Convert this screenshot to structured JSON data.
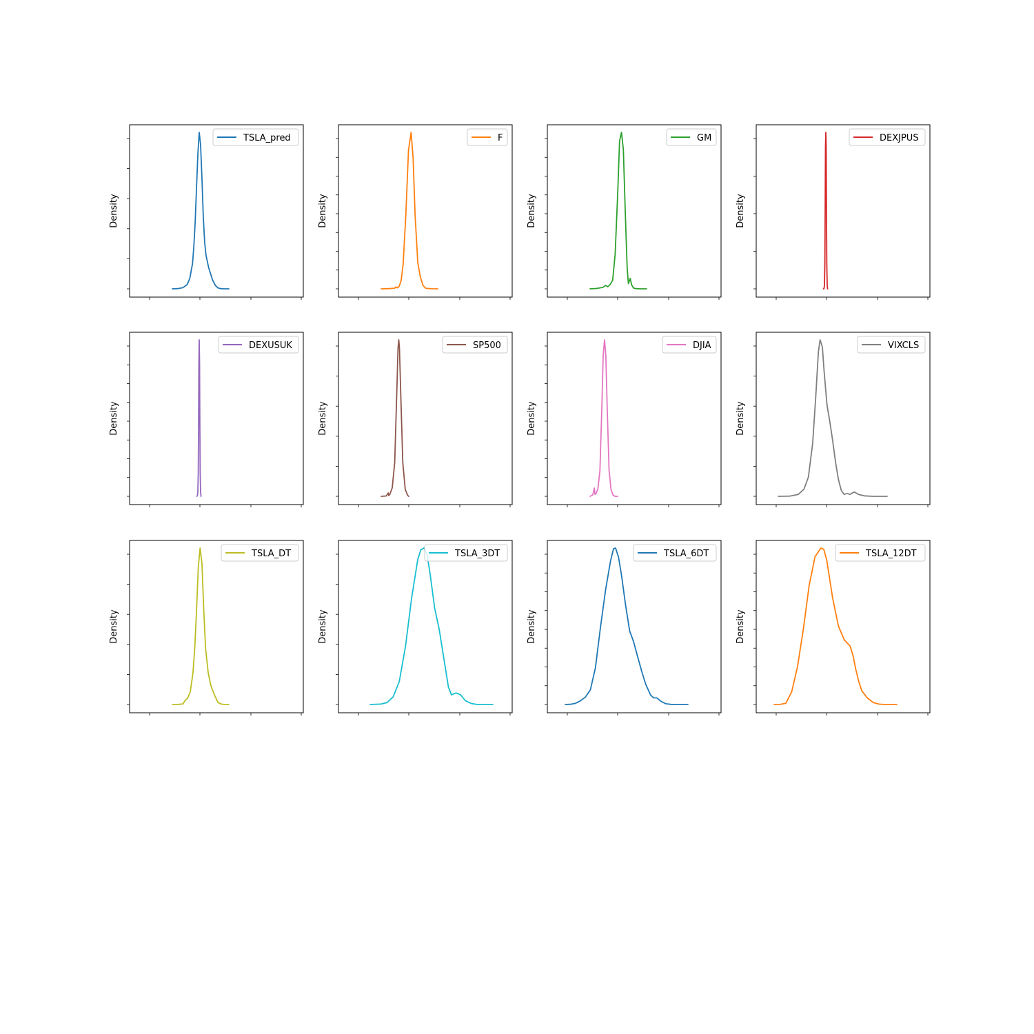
{
  "chart_data": [
    {
      "type": "line",
      "title": "",
      "xlabel": "",
      "ylabel": "Density",
      "legend": "upper right",
      "grid": false,
      "color": "#1f77b4",
      "series": [
        {
          "name": "TSLA_pred",
          "x": [
            -20,
            -16,
            -12,
            -9,
            -7,
            -5,
            -4,
            -3,
            -2,
            -1,
            0,
            1,
            2,
            3,
            4,
            5,
            7,
            9,
            10,
            12,
            14,
            16,
            18,
            22
          ],
          "y": [
            0.0,
            0.0005,
            0.003,
            0.01,
            0.025,
            0.06,
            0.1,
            0.16,
            0.24,
            0.32,
            0.37,
            0.34,
            0.26,
            0.17,
            0.11,
            0.08,
            0.05,
            0.03,
            0.02,
            0.008,
            0.002,
            0.0005,
            0.0,
            0.0
          ]
        }
      ]
    },
    {
      "type": "line",
      "title": "",
      "xlabel": "",
      "ylabel": "Density",
      "legend": "upper right",
      "grid": false,
      "color": "#ff7f0e",
      "series": [
        {
          "name": "F",
          "x": [
            -4.5,
            -3.5,
            -2.5,
            -2.3,
            -2.1,
            -1.8,
            -1.5,
            -1.2,
            -0.8,
            -0.4,
            0.0,
            0.3,
            0.6,
            1.0,
            1.4,
            1.8,
            2.2,
            3.0,
            4.0
          ],
          "y": [
            0.0,
            0.001,
            0.004,
            0.012,
            0.006,
            0.015,
            0.05,
            0.15,
            0.45,
            0.85,
            0.96,
            0.8,
            0.45,
            0.16,
            0.07,
            0.02,
            0.004,
            0.0005,
            0.0
          ]
        }
      ]
    },
    {
      "type": "line",
      "title": "",
      "xlabel": "",
      "ylabel": "Density",
      "legend": "upper right",
      "grid": false,
      "color": "#2ca02c",
      "series": [
        {
          "name": "GM",
          "x": [
            -5.0,
            -4.0,
            -3.0,
            -2.5,
            -2.2,
            -1.8,
            -1.4,
            -1.0,
            -0.6,
            -0.3,
            0.0,
            0.3,
            0.6,
            0.9,
            1.1,
            1.4,
            1.6,
            1.9,
            2.3,
            3.0,
            4.0
          ],
          "y": [
            0.0,
            0.002,
            0.008,
            0.02,
            0.012,
            0.025,
            0.05,
            0.2,
            0.55,
            0.85,
            0.9,
            0.8,
            0.45,
            0.12,
            0.03,
            0.06,
            0.025,
            0.005,
            0.001,
            0.0,
            0.0
          ]
        }
      ]
    },
    {
      "type": "line",
      "title": "",
      "xlabel": "",
      "ylabel": "Density",
      "legend": "upper right",
      "grid": false,
      "color": "#d62728",
      "series": [
        {
          "name": "DEXJPUS",
          "x": [
            -0.06,
            -0.045,
            -0.035,
            -0.025,
            -0.015,
            -0.008,
            0.0,
            0.008,
            0.015,
            0.025,
            0.035,
            0.045
          ],
          "y": [
            0.0,
            1.0,
            8.0,
            60.0,
            200.0,
            340.0,
            375.0,
            340.0,
            200.0,
            60.0,
            8.0,
            0.0
          ]
        }
      ]
    },
    {
      "type": "line",
      "title": "",
      "xlabel": "",
      "ylabel": "Density",
      "legend": "upper right",
      "grid": false,
      "color": "#9467bd",
      "series": [
        {
          "name": "DEXUSUK",
          "x": [
            -0.06,
            -0.045,
            -0.035,
            -0.025,
            -0.015,
            -0.008,
            0.0,
            0.008,
            0.015,
            0.025,
            0.035,
            0.045
          ],
          "y": [
            0.0,
            1.0,
            6.0,
            35.0,
            110.0,
            195.0,
            230.0,
            195.0,
            110.0,
            35.0,
            6.0,
            0.0
          ]
        }
      ]
    },
    {
      "type": "line",
      "title": "",
      "xlabel": "",
      "ylabel": "Density",
      "legend": "upper right",
      "grid": false,
      "color": "#8c564b",
      "series": [
        {
          "name": "SP500",
          "x": [
            -350,
            -250,
            -210,
            -200,
            -180,
            -130,
            -80,
            -40,
            -15,
            0,
            15,
            40,
            80,
            130,
            180,
            200
          ],
          "y": [
            0.0,
            4e-05,
            0.0004,
            0.0001,
            0.0002,
            0.001,
            0.004,
            0.012,
            0.0175,
            0.0185,
            0.0175,
            0.012,
            0.004,
            0.0008,
            0.0001,
            0.0
          ]
        }
      ]
    },
    {
      "type": "line",
      "title": "",
      "xlabel": "",
      "ylabel": "Density",
      "legend": "upper right",
      "grid": false,
      "color": "#e377c2",
      "series": [
        {
          "name": "DJIA",
          "x": [
            -2200,
            -1800,
            -1550,
            -1450,
            -1300,
            -1000,
            -700,
            -400,
            -200,
            0,
            200,
            400,
            700,
            1000,
            1300,
            1600,
            2000
          ],
          "y": [
            0.0,
            2e-05,
            0.00013,
            3e-05,
            4e-05,
            0.00012,
            0.0004,
            0.0014,
            0.0022,
            0.00245,
            0.0022,
            0.0014,
            0.0004,
            0.0001,
            2e-05,
            0.0,
            0.0
          ]
        }
      ]
    },
    {
      "type": "line",
      "title": "",
      "xlabel": "",
      "ylabel": "Density",
      "legend": "upper right",
      "grid": false,
      "color": "#7f7f7f",
      "series": [
        {
          "name": "VIXCLS",
          "x": [
            -15,
            -11,
            -8,
            -6,
            -4.5,
            -3,
            -2,
            -1,
            -0.4,
            0.4,
            1,
            2,
            3,
            4,
            5,
            6,
            7,
            8,
            9,
            10,
            11.5,
            13,
            15,
            18,
            23
          ],
          "y": [
            0.0,
            0.0005,
            0.004,
            0.015,
            0.04,
            0.11,
            0.2,
            0.3,
            0.325,
            0.31,
            0.26,
            0.19,
            0.155,
            0.115,
            0.07,
            0.035,
            0.012,
            0.004,
            0.006,
            0.004,
            0.009,
            0.004,
            0.001,
            0.0,
            0.0
          ]
        }
      ]
    },
    {
      "type": "line",
      "title": "",
      "xlabel": "",
      "ylabel": "Density",
      "legend": "upper right",
      "grid": false,
      "color": "#bcbd22",
      "series": [
        {
          "name": "TSLA_DT",
          "x": [
            -15.5,
            -12,
            -9.5,
            -8.5,
            -7,
            -5.5,
            -4,
            -3,
            -2,
            -1,
            0,
            1,
            2,
            3,
            4.5,
            6,
            8,
            10,
            12,
            14,
            16
          ],
          "y": [
            0.0,
            0.0004,
            0.002,
            0.012,
            0.02,
            0.04,
            0.1,
            0.18,
            0.3,
            0.44,
            0.5,
            0.45,
            0.3,
            0.18,
            0.1,
            0.06,
            0.03,
            0.006,
            0.001,
            0.0,
            0.0
          ]
        }
      ]
    },
    {
      "type": "line",
      "title": "",
      "xlabel": "",
      "ylabel": "Density",
      "legend": "upper right",
      "grid": false,
      "color": "#17becf",
      "series": [
        {
          "name": "TSLA_3DT",
          "x": [
            -35,
            -28,
            -24,
            -20,
            -16,
            -12,
            -8,
            -4,
            -2,
            0,
            2,
            4,
            7,
            10,
            13,
            16,
            18,
            21,
            24,
            27,
            31,
            35,
            40,
            45
          ],
          "y": [
            0.0,
            0.0002,
            0.001,
            0.004,
            0.012,
            0.03,
            0.055,
            0.075,
            0.08,
            0.081,
            0.078,
            0.068,
            0.05,
            0.039,
            0.024,
            0.009,
            0.005,
            0.006,
            0.005,
            0.002,
            0.0005,
            0.0,
            0.0,
            0.0
          ]
        }
      ]
    },
    {
      "type": "line",
      "title": "",
      "xlabel": "",
      "ylabel": "Density",
      "legend": "upper right",
      "grid": false,
      "color": "#1f77b4",
      "series": [
        {
          "name": "TSLA_6DT",
          "x": [
            -50,
            -45,
            -40,
            -35,
            -30,
            -25,
            -20,
            -15,
            -10,
            -5,
            -2,
            0,
            3,
            6,
            10,
            14,
            18,
            22,
            26,
            30,
            35,
            38,
            41,
            45,
            50,
            55,
            60,
            72
          ],
          "y": [
            0.0,
            5e-05,
            0.0003,
            0.001,
            0.002,
            0.004,
            0.01,
            0.021,
            0.031,
            0.039,
            0.0423,
            0.0425,
            0.04,
            0.035,
            0.027,
            0.02,
            0.017,
            0.013,
            0.009,
            0.0055,
            0.0025,
            0.0018,
            0.0018,
            0.0009,
            0.0002,
            3e-05,
            0.0,
            0.0
          ]
        }
      ]
    },
    {
      "type": "line",
      "title": "",
      "xlabel": "",
      "ylabel": "Density",
      "legend": "upper right",
      "grid": false,
      "color": "#ff7f0e",
      "series": [
        {
          "name": "TSLA_12DT",
          "x": [
            -80,
            -70,
            -60,
            -50,
            -40,
            -30,
            -20,
            -10,
            0,
            5,
            10,
            20,
            30,
            40,
            50,
            55,
            60,
            65,
            70,
            80,
            90,
            100,
            110,
            120,
            130
          ],
          "y": [
            0.0,
            1e-05,
            0.0002,
            0.002,
            0.006,
            0.012,
            0.019,
            0.0235,
            0.0249,
            0.0247,
            0.023,
            0.017,
            0.0125,
            0.0103,
            0.0093,
            0.0078,
            0.0055,
            0.0036,
            0.0022,
            0.001,
            0.0003,
            5e-05,
            0.0,
            0.0,
            0.0
          ]
        }
      ]
    }
  ]
}
